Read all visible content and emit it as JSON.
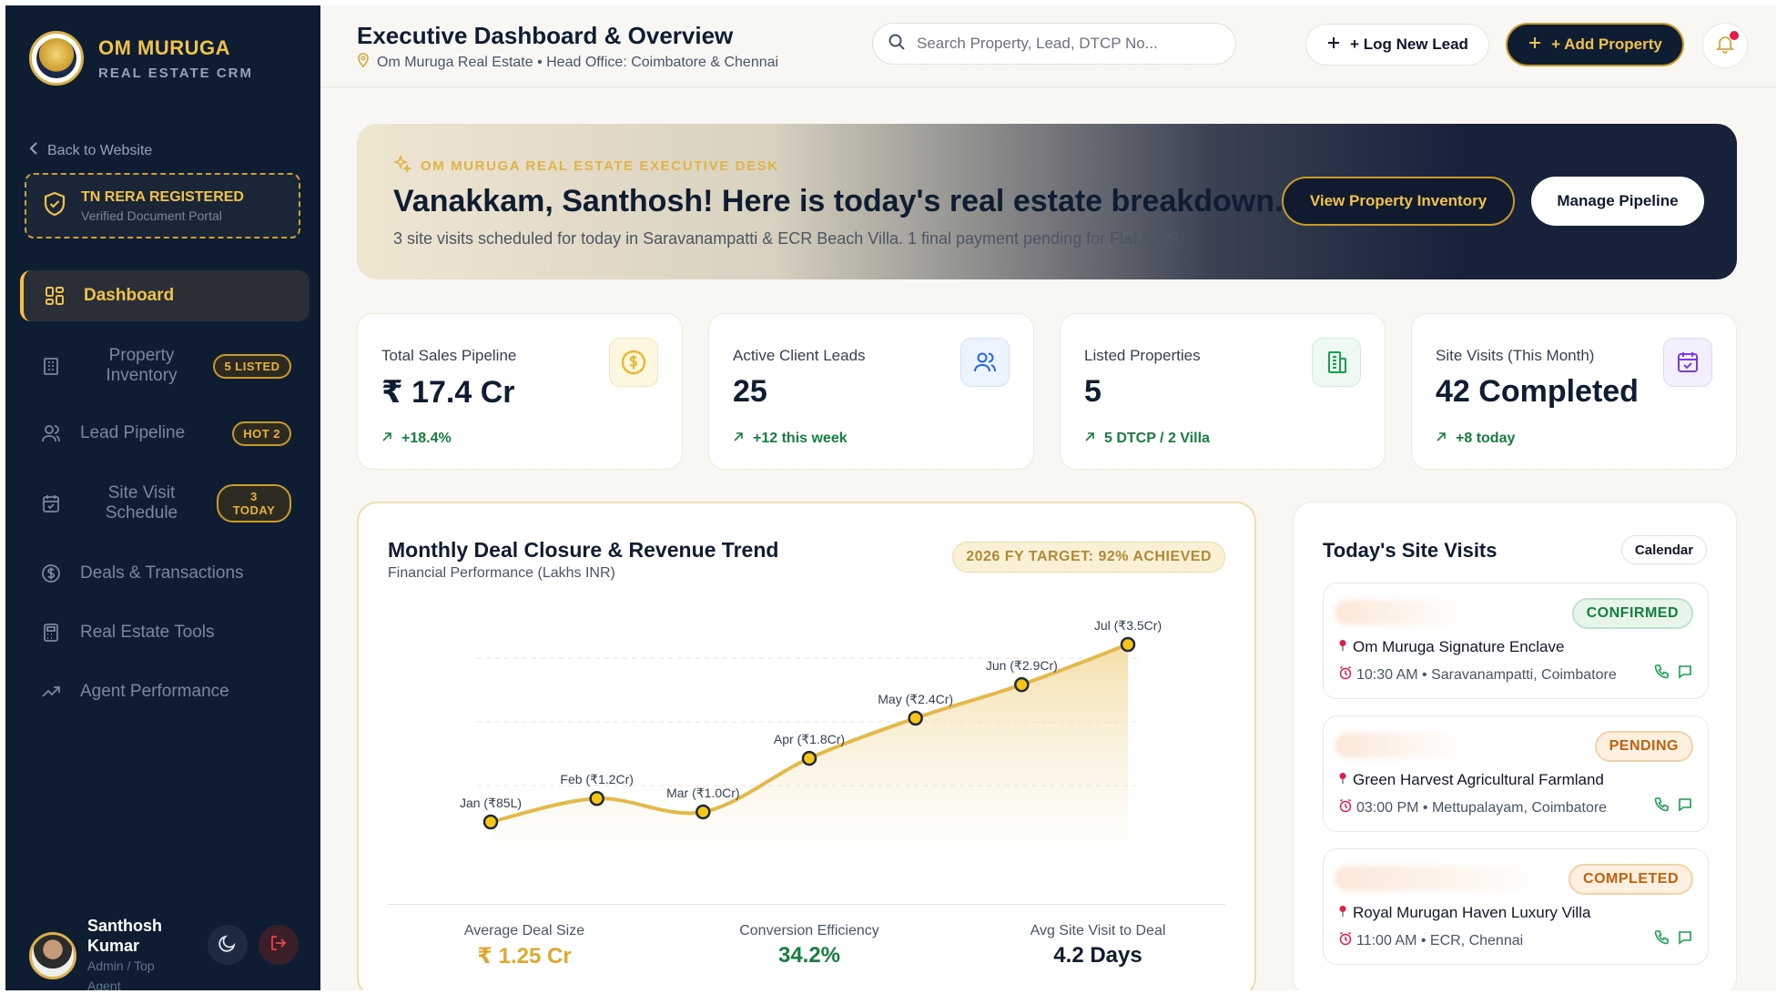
{
  "brand": {
    "name": "OM MURUGA",
    "sub": "REAL ESTATE CRM"
  },
  "sidebar": {
    "back": "Back to Website",
    "rera_title": "TN RERA REGISTERED",
    "rera_sub": "Verified Document Portal",
    "items": [
      {
        "label": "Dashboard"
      },
      {
        "label": "Property Inventory",
        "badge": "5 LISTED"
      },
      {
        "label": "Lead Pipeline",
        "badge": "HOT 2"
      },
      {
        "label": "Site Visit Schedule",
        "badge": "3 TODAY"
      },
      {
        "label": "Deals & Transactions"
      },
      {
        "label": "Real Estate Tools"
      },
      {
        "label": "Agent Performance"
      }
    ],
    "user": {
      "name": "Santhosh Kumar",
      "role": "Admin / Top Agent"
    }
  },
  "header": {
    "title": "Executive Dashboard & Overview",
    "subtitle": "Om Muruga Real Estate • Head Office: Coimbatore & Chennai",
    "search_placeholder": "Search Property, Lead, DTCP No...",
    "log_lead": "+ Log New Lead",
    "add_property": "+ Add Property"
  },
  "hero": {
    "kicker": "OM MURUGA REAL ESTATE EXECUTIVE DESK",
    "title": "Vanakkam, Santhosh! Here is today's real estate breakdown.",
    "subtitle": "3 site visits scheduled for today in Saravanampatti & ECR Beach Villa. 1 final payment pending for Flat A309.",
    "btn_inventory": "View Property Inventory",
    "btn_pipeline": "Manage Pipeline"
  },
  "kpis": [
    {
      "label": "Total Sales Pipeline",
      "value": "₹ 17.4 Cr",
      "delta": "+18.4%",
      "icon": "rupee-coin-icon",
      "color": "#e8b928"
    },
    {
      "label": "Active Client Leads",
      "value": "25",
      "delta": "+12 this week",
      "icon": "users-icon",
      "color": "#2563eb"
    },
    {
      "label": "Listed Properties",
      "value": "5",
      "delta": "5 DTCP / 2 Villa",
      "icon": "building-icon",
      "color": "#16a34a"
    },
    {
      "label": "Site Visits (This Month)",
      "value": "42 Completed",
      "delta": "+8 today",
      "icon": "calendar-check-icon",
      "color": "#7c3aed"
    }
  ],
  "chart": {
    "title": "Monthly Deal Closure & Revenue Trend",
    "subtitle": "Financial Performance (Lakhs INR)",
    "target": "2026 FY TARGET: 92% ACHIEVED",
    "stats": [
      {
        "label": "Average Deal Size",
        "value": "₹ 1.25 Cr",
        "color": "#e0a82e"
      },
      {
        "label": "Conversion Efficiency",
        "value": "34.2%",
        "color": "#15803d"
      },
      {
        "label": "Avg Site Visit to Deal",
        "value": "4.2 Days",
        "color": "#0f1d33"
      }
    ]
  },
  "chart_data": {
    "type": "area",
    "unit": "Lakhs INR",
    "categories": [
      "Jan",
      "Feb",
      "Mar",
      "Apr",
      "May",
      "Jun",
      "Jul"
    ],
    "values": [
      85,
      120,
      100,
      180,
      240,
      290,
      350
    ],
    "point_labels": [
      "Jan (₹85L)",
      "Feb (₹1.2Cr)",
      "Mar (₹1.0Cr)",
      "Apr (₹1.8Cr)",
      "May (₹2.4Cr)",
      "Jun (₹2.9Cr)",
      "Jul (₹3.5Cr)"
    ],
    "grid": true,
    "line_color": "#e5b84a",
    "point_color": "#f5c518"
  },
  "visits": {
    "title": "Today's Site Visits",
    "calendar": "Calendar",
    "items": [
      {
        "status": "CONFIRMED",
        "property": "Om Muruga Signature Enclave",
        "time": "10:30 AM • Saravanampatti, Coimbatore",
        "status_bg": "#e7f5ea",
        "status_fg": "#15803d",
        "status_border": "#bfe3c8"
      },
      {
        "status": "PENDING",
        "property": "Green Harvest Agricultural Farmland",
        "time": "03:00 PM • Mettupalayam, Coimbatore",
        "status_bg": "#fdf0e1",
        "status_fg": "#c2610c",
        "status_border": "#f4d2a8"
      },
      {
        "status": "COMPLETED",
        "property": "Royal Murugan Haven Luxury Villa",
        "time": "11:00 AM • ECR, Chennai",
        "status_bg": "#fdf0e1",
        "status_fg": "#c2610c",
        "status_border": "#f4d2a8"
      }
    ]
  }
}
